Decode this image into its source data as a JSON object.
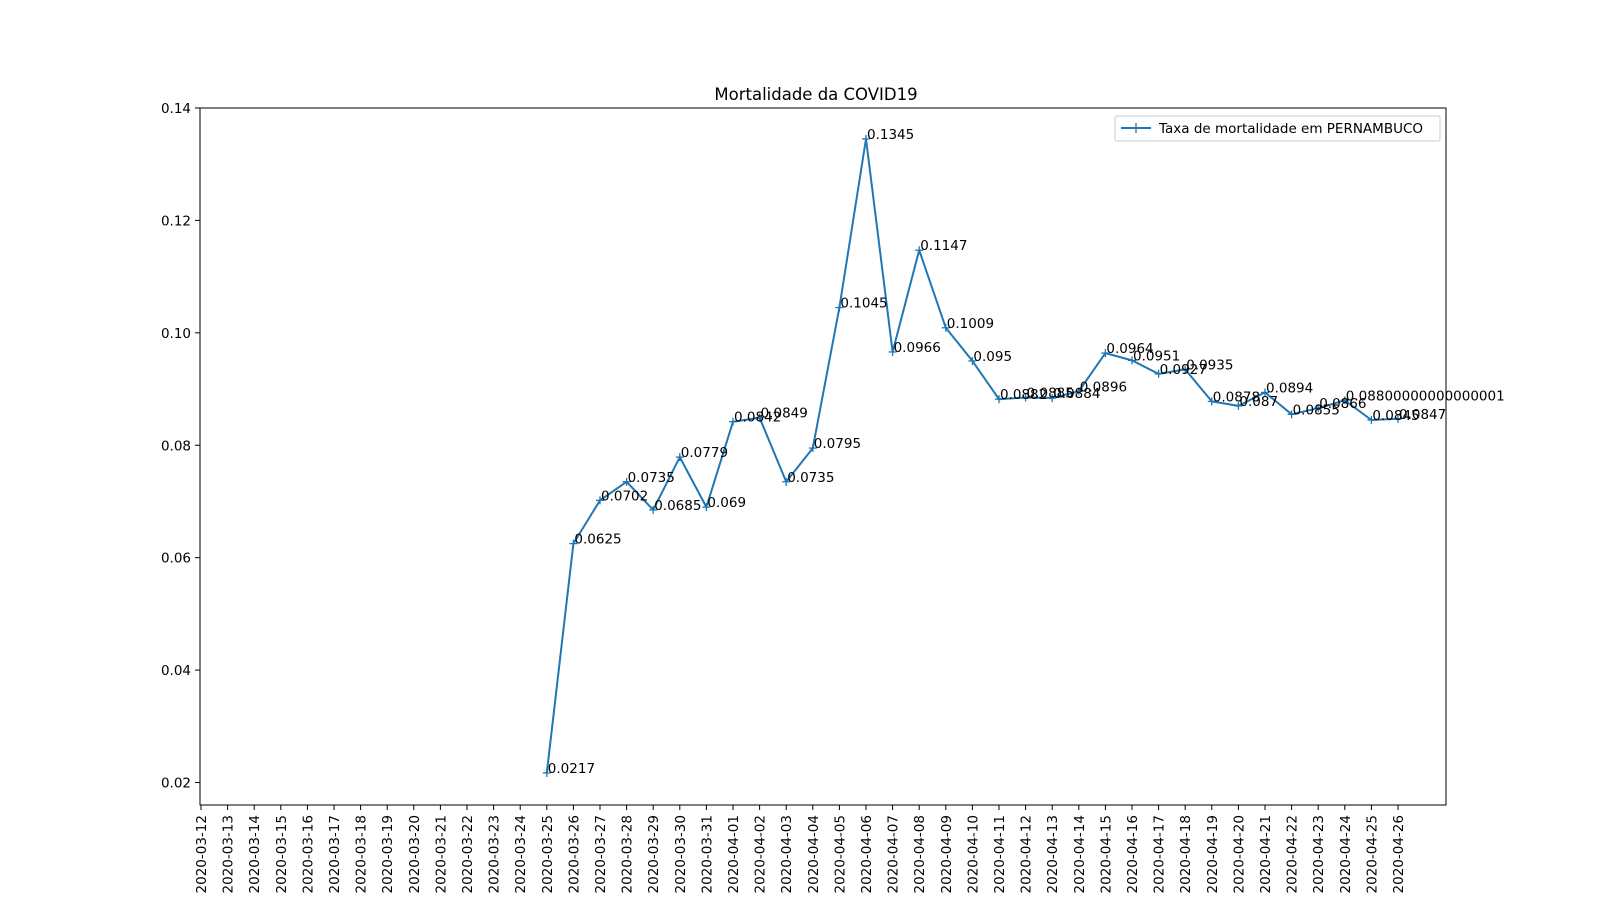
{
  "chart_data": {
    "type": "line",
    "title": "Mortalidade da COVID19",
    "xlabel": "",
    "ylabel": "",
    "x": [
      "2020-03-12",
      "2020-03-13",
      "2020-03-14",
      "2020-03-15",
      "2020-03-16",
      "2020-03-17",
      "2020-03-18",
      "2020-03-19",
      "2020-03-20",
      "2020-03-21",
      "2020-03-22",
      "2020-03-23",
      "2020-03-24",
      "2020-03-25",
      "2020-03-26",
      "2020-03-27",
      "2020-03-28",
      "2020-03-29",
      "2020-03-30",
      "2020-03-31",
      "2020-04-01",
      "2020-04-02",
      "2020-04-03",
      "2020-04-04",
      "2020-04-05",
      "2020-04-06",
      "2020-04-07",
      "2020-04-08",
      "2020-04-09",
      "2020-04-10",
      "2020-04-11",
      "2020-04-12",
      "2020-04-13",
      "2020-04-14",
      "2020-04-15",
      "2020-04-16",
      "2020-04-17",
      "2020-04-18",
      "2020-04-19",
      "2020-04-20",
      "2020-04-21",
      "2020-04-22",
      "2020-04-23",
      "2020-04-24",
      "2020-04-25",
      "2020-04-26"
    ],
    "series": [
      {
        "name": "Taxa de mortalidade em PERNAMBUCO",
        "color": "#1f77b4",
        "marker": "+",
        "values": [
          null,
          null,
          null,
          null,
          null,
          null,
          null,
          null,
          null,
          null,
          null,
          null,
          null,
          0.0217,
          0.0625,
          0.0702,
          0.0735,
          0.0685,
          0.0779,
          0.069,
          0.0842,
          0.0849,
          0.0735,
          0.0795,
          0.1045,
          0.1345,
          0.0966,
          0.1147,
          0.1009,
          0.095,
          0.0882,
          0.0885,
          0.0884,
          0.0896,
          0.0964,
          0.0951,
          0.0927,
          0.0935,
          0.0878,
          0.087,
          0.0894,
          0.0855,
          0.0866,
          0.088,
          0.0845,
          0.0847
        ],
        "labels": [
          null,
          null,
          null,
          null,
          null,
          null,
          null,
          null,
          null,
          null,
          null,
          null,
          null,
          "0.0217",
          "0.0625",
          "0.0702",
          "0.0735",
          "0.0685",
          "0.0779",
          "0.069",
          "0.0842",
          "0.0849",
          "0.0735",
          "0.0795",
          "0.1045",
          "0.1345",
          "0.0966",
          "0.1147",
          "0.1009",
          "0.095",
          "0.0882",
          "0.0885",
          "0.0884",
          "0.0896",
          "0.0964",
          "0.0951",
          "0.0927",
          "0.0935",
          "0.0878",
          "0.087",
          "0.0894",
          "0.0855",
          "0.0866",
          "0.08800000000000001",
          "0.0845",
          "0.0847"
        ]
      }
    ],
    "yticks": [
      "0.02",
      "0.04",
      "0.06",
      "0.08",
      "0.10",
      "0.12",
      "0.14"
    ],
    "ylim": [
      0.016,
      0.14
    ],
    "grid": false,
    "legend_position": "top-right"
  }
}
